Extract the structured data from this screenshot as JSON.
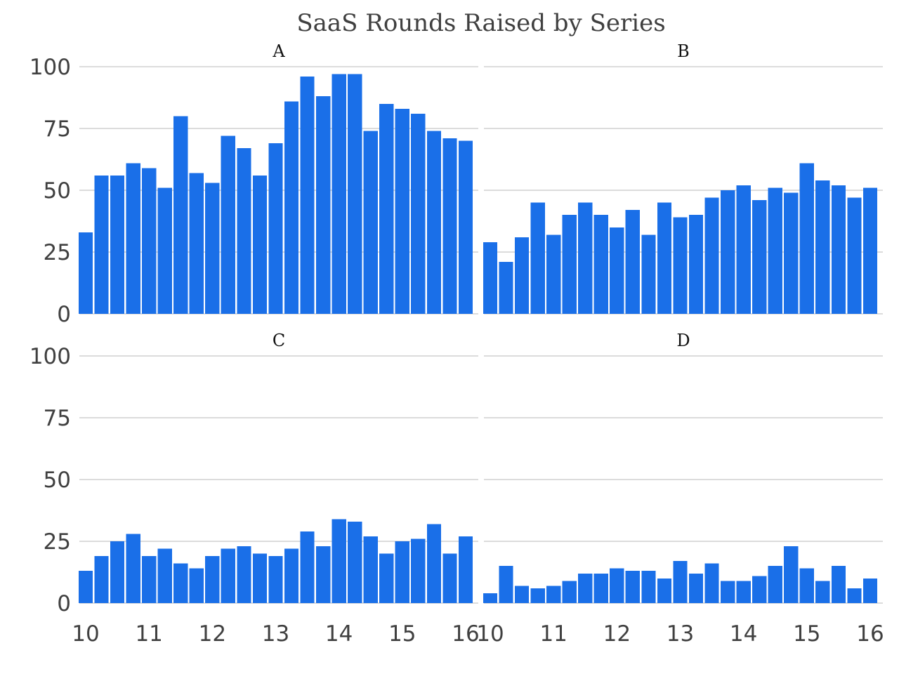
{
  "chart_data": {
    "type": "bar",
    "title": "SaaS Rounds Raised by Series",
    "layout": "2x2 facets",
    "bar_color": "#1a6fe8",
    "grid": true,
    "grid_color": "#c8c8c8",
    "ylim": [
      0,
      100
    ],
    "yticks": [
      0,
      25,
      50,
      75,
      100
    ],
    "xlim": [
      9.9,
      16.2
    ],
    "xticks": [
      10,
      11,
      12,
      13,
      14,
      15,
      16
    ],
    "x": [
      10.0,
      10.25,
      10.5,
      10.75,
      11.0,
      11.25,
      11.5,
      11.75,
      12.0,
      12.25,
      12.5,
      12.75,
      13.0,
      13.25,
      13.5,
      13.75,
      14.0,
      14.25,
      14.5,
      14.75,
      15.0,
      15.25,
      15.5,
      15.75,
      16.0
    ],
    "facets": [
      {
        "label": "A",
        "values": [
          33,
          56,
          56,
          61,
          59,
          51,
          80,
          57,
          53,
          72,
          67,
          56,
          69,
          86,
          96,
          88,
          97,
          97,
          74,
          85,
          83,
          81,
          74,
          71,
          70
        ]
      },
      {
        "label": "B",
        "values": [
          29,
          21,
          31,
          45,
          32,
          40,
          45,
          40,
          35,
          42,
          32,
          45,
          39,
          40,
          47,
          50,
          52,
          46,
          51,
          49,
          61,
          54,
          52,
          47,
          51
        ]
      },
      {
        "label": "C",
        "values": [
          13,
          19,
          25,
          28,
          19,
          22,
          16,
          14,
          19,
          22,
          23,
          20,
          19,
          22,
          29,
          23,
          34,
          33,
          27,
          20,
          25,
          26,
          32,
          20,
          27
        ]
      },
      {
        "label": "D",
        "values": [
          4,
          15,
          7,
          6,
          7,
          9,
          12,
          12,
          14,
          13,
          13,
          10,
          17,
          12,
          16,
          9,
          9,
          11,
          15,
          23,
          14,
          9,
          15,
          6,
          10
        ]
      }
    ]
  }
}
